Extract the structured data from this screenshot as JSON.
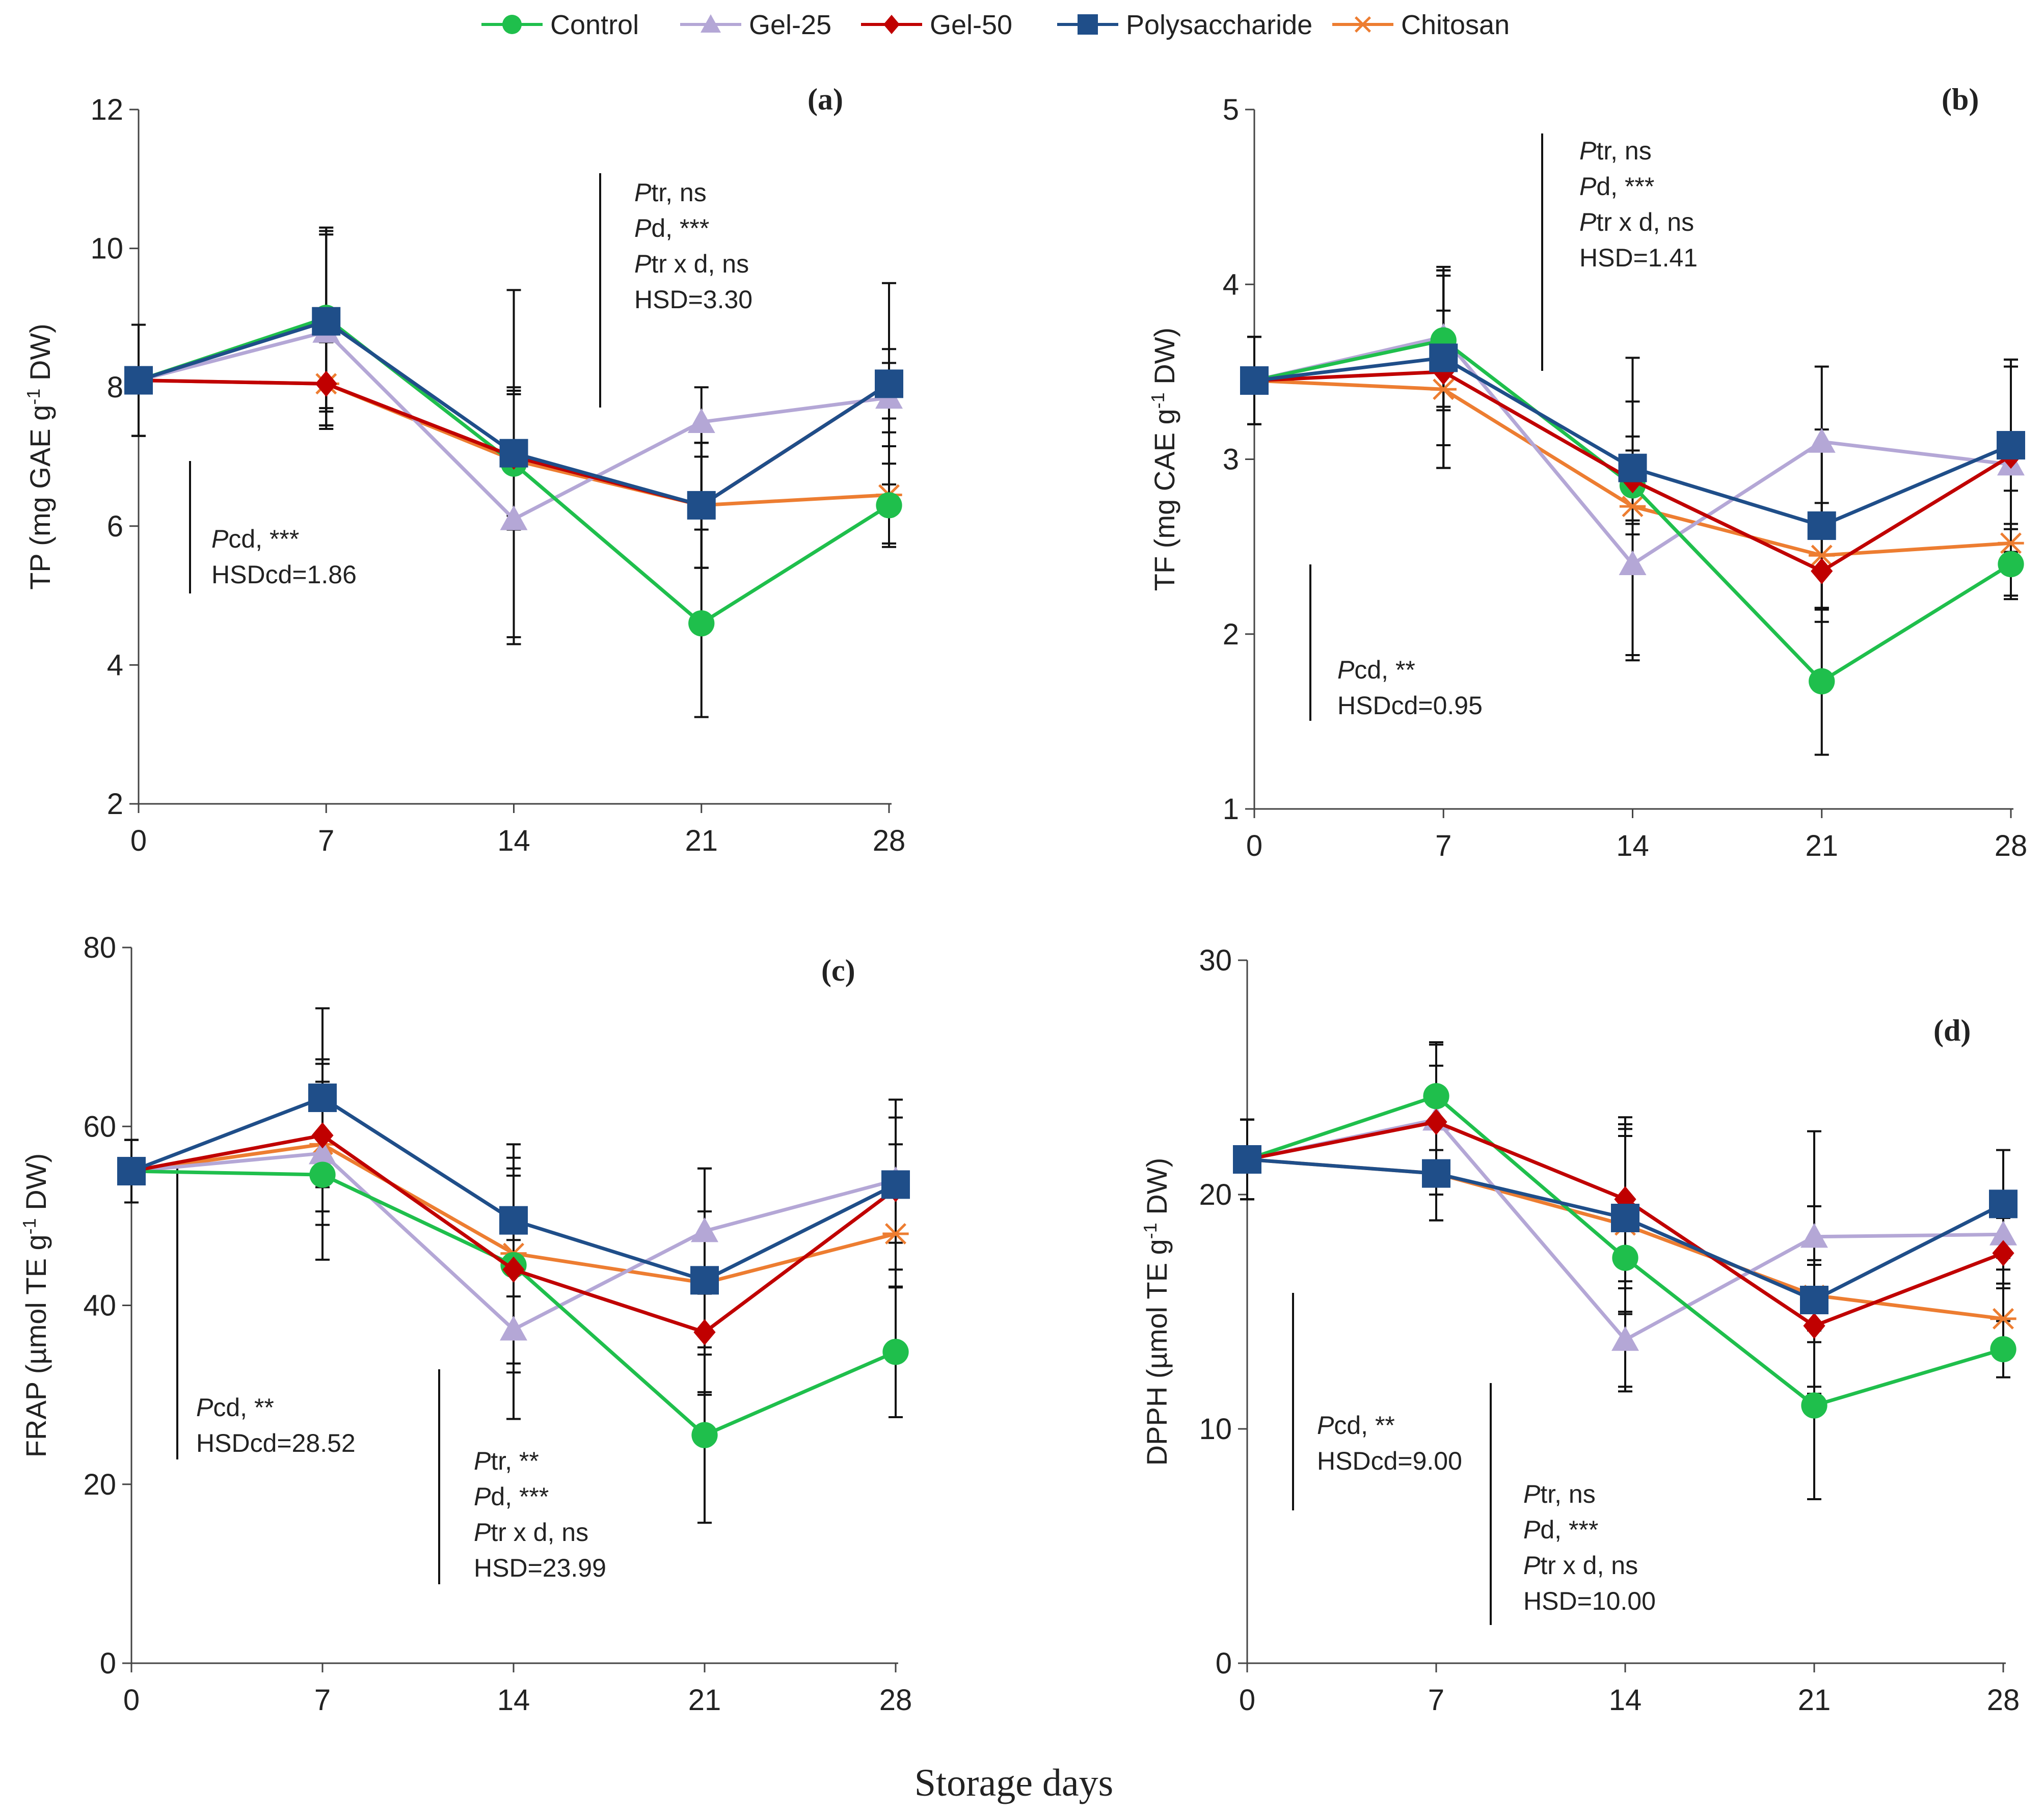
{
  "legend": [
    {
      "name": "Control",
      "color": "#1fbf4c",
      "marker": "circle"
    },
    {
      "name": "Gel-25",
      "color": "#b4a7d6",
      "marker": "triangle"
    },
    {
      "name": "Gel-50",
      "color": "#c00000",
      "marker": "diamond"
    },
    {
      "name": "Polysaccharide",
      "color": "#1f4e89",
      "marker": "square"
    },
    {
      "name": "Chitosan",
      "color": "#ed7d31",
      "marker": "star"
    }
  ],
  "xlabel": "Storage days",
  "chart_data": [
    {
      "type": "line",
      "panel": "(a)",
      "ylabel_prefix": "TP (mg GAE g",
      "ylabel_sup": "-1",
      "ylabel_suffix": " DW)",
      "x": [
        0,
        7,
        14,
        21,
        28
      ],
      "xticks": [
        "0",
        "7",
        "14",
        "21",
        "28"
      ],
      "ylim": [
        2,
        12
      ],
      "yticks": [
        "2",
        "4",
        "6",
        "8",
        "10",
        "12"
      ],
      "series": [
        {
          "name": "Control",
          "values": [
            8.1,
            9.0,
            6.9,
            4.6,
            6.3
          ],
          "err": [
            0.8,
            1.3,
            2.5,
            1.35,
            0.6
          ]
        },
        {
          "name": "Gel-25",
          "values": [
            8.1,
            8.8,
            6.1,
            7.5,
            7.85
          ],
          "err": [
            0.8,
            1.4,
            1.8,
            0.5,
            0.5
          ]
        },
        {
          "name": "Gel-50",
          "values": [
            8.1,
            8.05,
            7.0,
            6.3,
            8.05
          ],
          "err": [
            0.8,
            0.6,
            1.0,
            0.9,
            0.5
          ]
        },
        {
          "name": "Polysaccharide",
          "values": [
            8.1,
            8.95,
            7.05,
            6.3,
            8.05
          ],
          "err": [
            0.8,
            1.3,
            0.9,
            0.9,
            1.45
          ]
        },
        {
          "name": "Chitosan",
          "values": [
            8.1,
            8.05,
            6.95,
            6.3,
            6.45
          ],
          "err": [
            0.8,
            0.6,
            1.0,
            0.9,
            0.7
          ]
        }
      ],
      "stats_cd": [
        {
          "italic": "P",
          "text": "cd, ***"
        },
        {
          "italic": "",
          "text": "HSDcd=1.86"
        }
      ],
      "stats_tr": [
        {
          "italic": "P",
          "text": "tr, ns"
        },
        {
          "italic": "P",
          "text": "d, ***"
        },
        {
          "italic": "P",
          "text": "tr x d, ns"
        },
        {
          "italic": "",
          "text": "HSD=3.30"
        }
      ]
    },
    {
      "type": "line",
      "panel": "(b)",
      "ylabel_prefix": "TF (mg CAE g",
      "ylabel_sup": "-1",
      "ylabel_suffix": " DW)",
      "x": [
        0,
        7,
        14,
        21,
        28
      ],
      "xticks": [
        "0",
        "7",
        "14",
        "21",
        "28"
      ],
      "ylim": [
        1,
        5
      ],
      "yticks": [
        "1",
        "2",
        "3",
        "4",
        "5"
      ],
      "series": [
        {
          "name": "Control",
          "values": [
            3.45,
            3.68,
            2.85,
            1.73,
            2.4
          ],
          "err": [
            0.25,
            0.4,
            0.2,
            0.42,
            0.2
          ]
        },
        {
          "name": "Gel-25",
          "values": [
            3.45,
            3.7,
            2.4,
            3.1,
            2.97
          ],
          "err": [
            0.25,
            0.4,
            0.55,
            0.43,
            0.6
          ]
        },
        {
          "name": "Gel-50",
          "values": [
            3.45,
            3.5,
            2.88,
            2.36,
            3.02
          ],
          "err": [
            0.25,
            0.55,
            0.25,
            0.22,
            0.55
          ]
        },
        {
          "name": "Polysaccharide",
          "values": [
            3.45,
            3.58,
            2.95,
            2.62,
            3.08
          ],
          "err": [
            0.25,
            0.5,
            0.38,
            0.55,
            0.45
          ]
        },
        {
          "name": "Chitosan",
          "values": [
            3.45,
            3.4,
            2.73,
            2.45,
            2.52
          ],
          "err": [
            0.25,
            0.45,
            0.85,
            0.3,
            0.3
          ]
        }
      ],
      "stats_cd": [
        {
          "italic": "P",
          "text": "cd, **"
        },
        {
          "italic": "",
          "text": "HSDcd=0.95"
        }
      ],
      "stats_tr": [
        {
          "italic": "P",
          "text": "tr, ns"
        },
        {
          "italic": "P",
          "text": "d, ***"
        },
        {
          "italic": "P",
          "text": "tr x d, ns"
        },
        {
          "italic": "",
          "text": "HSD=1.41"
        }
      ]
    },
    {
      "type": "line",
      "panel": "(c)",
      "ylabel_prefix": "FRAP (µmol TE g",
      "ylabel_sup": "-1",
      "ylabel_suffix": " DW)",
      "x": [
        0,
        7,
        14,
        21,
        28
      ],
      "xticks": [
        "0",
        "7",
        "14",
        "21",
        "28"
      ],
      "ylim": [
        0,
        80
      ],
      "yticks": [
        "0",
        "20",
        "40",
        "60",
        "80"
      ],
      "series": [
        {
          "name": "Control",
          "values": [
            55.0,
            54.6,
            44.5,
            25.5,
            34.8
          ],
          "err": [
            3.5,
            9.5,
            12.0,
            9.8,
            7.3
          ]
        },
        {
          "name": "Gel-25",
          "values": [
            55.0,
            57.0,
            37.3,
            48.3,
            54.0
          ],
          "err": [
            3.5,
            8.0,
            10.0,
            7.0,
            7.0
          ]
        },
        {
          "name": "Gel-50",
          "values": [
            55.0,
            59.0,
            44.0,
            37.0,
            53.0
          ],
          "err": [
            3.5,
            8.5,
            10.5,
            7.0,
            5.0
          ]
        },
        {
          "name": "Polysaccharide",
          "values": [
            55.0,
            63.2,
            49.5,
            42.8,
            53.5
          ],
          "err": [
            3.5,
            10.0,
            8.5,
            12.5,
            9.5
          ]
        },
        {
          "name": "Chitosan",
          "values": [
            55.0,
            58.0,
            45.8,
            42.5,
            48.0
          ],
          "err": [
            3.5,
            9.0,
            9.5,
            8.0,
            6.0
          ]
        }
      ],
      "stats_cd": [
        {
          "italic": "P",
          "text": "cd, **"
        },
        {
          "italic": "",
          "text": "HSDcd=28.52"
        }
      ],
      "stats_tr": [
        {
          "italic": "P",
          "text": "tr, **"
        },
        {
          "italic": "P",
          "text": "d, ***"
        },
        {
          "italic": "P",
          "text": "tr x d, ns"
        },
        {
          "italic": "",
          "text": "HSD=23.99"
        }
      ]
    },
    {
      "type": "line",
      "panel": "(d)",
      "ylabel_prefix": "DPPH (µmol TE g",
      "ylabel_sup": "-1",
      "ylabel_suffix": " DW)",
      "x": [
        0,
        7,
        14,
        21,
        28
      ],
      "xticks": [
        "0",
        "7",
        "14",
        "21",
        "28"
      ],
      "ylim": [
        0,
        30
      ],
      "yticks": [
        "0",
        "10",
        "20",
        "30"
      ],
      "series": [
        {
          "name": "Control",
          "values": [
            21.5,
            24.2,
            17.3,
            11.0,
            13.4
          ],
          "err": [
            1.7,
            2.3,
            5.5,
            4.0,
            1.2
          ]
        },
        {
          "name": "Gel-25",
          "values": [
            21.5,
            23.2,
            13.8,
            18.2,
            18.3
          ],
          "err": [
            1.7,
            3.2,
            2.2,
            4.5,
            1.5
          ]
        },
        {
          "name": "Gel-50",
          "values": [
            21.5,
            23.1,
            19.8,
            14.4,
            17.5
          ],
          "err": [
            1.7,
            2.4,
            3.5,
            2.6,
            1.5
          ]
        },
        {
          "name": "Polysaccharide",
          "values": [
            21.5,
            20.9,
            19.0,
            15.5,
            19.6
          ],
          "err": [
            1.7,
            2.0,
            4.0,
            4.0,
            2.3
          ]
        },
        {
          "name": "Chitosan",
          "values": [
            21.5,
            20.9,
            18.7,
            15.7,
            14.7
          ],
          "err": [
            1.7,
            2.0,
            3.8,
            1.5,
            1.5
          ]
        }
      ],
      "stats_cd": [
        {
          "italic": "P",
          "text": "cd, **"
        },
        {
          "italic": "",
          "text": "HSDcd=9.00"
        }
      ],
      "stats_tr": [
        {
          "italic": "P",
          "text": "tr, ns"
        },
        {
          "italic": "P",
          "text": "d, ***"
        },
        {
          "italic": "P",
          "text": "tr x d, ns"
        },
        {
          "italic": "",
          "text": "HSD=10.00"
        }
      ]
    }
  ]
}
